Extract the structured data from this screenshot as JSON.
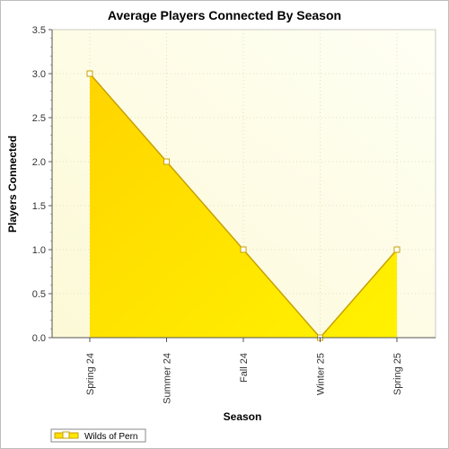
{
  "chart_data": {
    "type": "area",
    "title": "Average Players Connected By Season",
    "xlabel": "Season",
    "ylabel": "Players Connected",
    "categories": [
      "Spring 24",
      "Summer 24",
      "Fall 24",
      "Winter 25",
      "Spring 25"
    ],
    "series": [
      {
        "name": "Wilds of Pern",
        "values": [
          3.0,
          2.0,
          1.0,
          0.0,
          1.0
        ],
        "color": "#FFD700",
        "line_color": "#C8A000"
      }
    ],
    "ylim": [
      0,
      3.5
    ],
    "yticks": [
      "0.0",
      "0.5",
      "1.0",
      "1.5",
      "2.0",
      "2.5",
      "3.0",
      "3.5"
    ],
    "grid": true,
    "legend": "bottom-left",
    "plot_background": "#FFFDE8"
  }
}
